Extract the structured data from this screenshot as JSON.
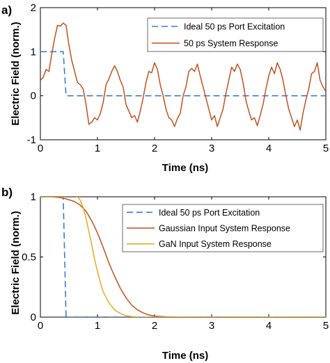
{
  "colors": {
    "ideal": "#3a7ad6",
    "system": "#c1521f",
    "gaussian": "#c1521f",
    "gan": "#e6ac1e"
  },
  "chart_data": [
    {
      "type": "line",
      "panel_label": "a)",
      "xlabel": "Time (ns)",
      "ylabel": "Electric Field (norm.)",
      "xlim": [
        0,
        5
      ],
      "ylim": [
        -1,
        2
      ],
      "xticks": [
        "0",
        "1",
        "2",
        "3",
        "4",
        "5"
      ],
      "yticks": [
        "-1",
        "0",
        "1",
        "2"
      ],
      "legend_position": "top-right",
      "series": [
        {
          "name": "Ideal 50 ps Port Excitation",
          "style": "dashed",
          "color_key": "ideal",
          "x": [
            0,
            0.4,
            0.45,
            5
          ],
          "y": [
            1,
            1,
            0,
            0
          ]
        },
        {
          "name": "50 ps System Response",
          "style": "solid",
          "color_key": "system",
          "x": [
            0,
            0.05,
            0.1,
            0.15,
            0.2,
            0.25,
            0.3,
            0.35,
            0.4,
            0.45,
            0.5,
            0.55,
            0.6,
            0.65,
            0.7,
            0.75,
            0.8,
            0.85,
            0.9,
            0.95,
            1.0,
            1.05,
            1.1,
            1.15,
            1.2,
            1.25,
            1.3,
            1.35,
            1.4,
            1.45,
            1.5,
            1.55,
            1.6,
            1.65,
            1.7,
            1.75,
            1.8,
            1.85,
            1.9,
            1.95,
            2.0,
            2.05,
            2.1,
            2.15,
            2.2,
            2.25,
            2.3,
            2.35,
            2.4,
            2.45,
            2.5,
            2.55,
            2.6,
            2.65,
            2.7,
            2.75,
            2.8,
            2.85,
            2.9,
            2.95,
            3.0,
            3.05,
            3.1,
            3.15,
            3.2,
            3.25,
            3.3,
            3.35,
            3.4,
            3.45,
            3.5,
            3.55,
            3.6,
            3.65,
            3.7,
            3.75,
            3.8,
            3.85,
            3.9,
            3.95,
            4.0,
            4.05,
            4.1,
            4.15,
            4.2,
            4.25,
            4.3,
            4.35,
            4.4,
            4.45,
            4.5,
            4.55,
            4.6,
            4.65,
            4.7,
            4.75,
            4.8,
            4.85,
            4.9,
            4.95,
            5.0
          ],
          "y": [
            0.35,
            0.42,
            0.6,
            0.55,
            0.95,
            1.3,
            1.6,
            1.58,
            1.65,
            1.6,
            1.15,
            0.8,
            0.55,
            0.3,
            0.25,
            0.15,
            -0.2,
            -0.65,
            -0.6,
            -0.5,
            -0.55,
            -0.4,
            -0.15,
            0.25,
            0.38,
            0.55,
            0.68,
            0.55,
            0.35,
            0.2,
            -0.2,
            -0.35,
            -0.5,
            -0.45,
            -0.6,
            -0.35,
            -0.05,
            0.3,
            0.55,
            0.52,
            0.75,
            0.6,
            0.25,
            0.0,
            -0.3,
            -0.5,
            -0.55,
            -0.7,
            -0.52,
            -0.4,
            0.0,
            0.2,
            0.55,
            0.62,
            0.55,
            0.72,
            0.45,
            0.2,
            -0.05,
            -0.3,
            -0.55,
            -0.45,
            -0.7,
            -0.5,
            -0.3,
            0.05,
            0.35,
            0.65,
            0.55,
            0.72,
            0.6,
            0.3,
            -0.1,
            -0.35,
            -0.55,
            -0.5,
            -0.68,
            -0.45,
            -0.2,
            0.15,
            0.45,
            0.65,
            0.5,
            0.75,
            0.6,
            0.35,
            0.0,
            -0.3,
            -0.5,
            -0.7,
            -0.55,
            -0.78,
            -0.4,
            -0.1,
            0.15,
            0.5,
            0.55,
            0.75,
            0.35,
            0.2,
            0.1
          ]
        }
      ]
    },
    {
      "type": "line",
      "panel_label": "b)",
      "xlabel": "Time (ns)",
      "ylabel": "Electric Field (norm.)",
      "xlim": [
        0,
        5
      ],
      "ylim": [
        0,
        1
      ],
      "xticks": [
        "0",
        "1",
        "2",
        "3",
        "4",
        "5"
      ],
      "yticks": [
        "0",
        "0.5",
        "1"
      ],
      "legend_position": "top-right",
      "series": [
        {
          "name": "Ideal 50 ps Port Excitation",
          "style": "dashed",
          "color_key": "ideal",
          "x": [
            0,
            0.4,
            0.45,
            5
          ],
          "y": [
            1,
            1,
            0,
            0
          ]
        },
        {
          "name": "Gaussian Input System Response",
          "style": "solid",
          "color_key": "gaussian",
          "x": [
            0,
            0.2,
            0.4,
            0.6,
            0.7,
            0.8,
            0.9,
            1.0,
            1.1,
            1.2,
            1.3,
            1.4,
            1.5,
            1.6,
            1.7,
            1.8,
            1.9,
            2.0,
            2.2,
            2.5,
            3.0,
            3.5,
            4.0,
            4.5,
            5.0
          ],
          "y": [
            1.0,
            1.0,
            0.99,
            0.96,
            0.93,
            0.88,
            0.8,
            0.7,
            0.58,
            0.45,
            0.34,
            0.24,
            0.16,
            0.1,
            0.06,
            0.035,
            0.018,
            0.008,
            0.003,
            0.001,
            0.0,
            0.002,
            -0.002,
            0.001,
            0.0
          ]
        },
        {
          "name": "GaN Input System Response",
          "style": "solid",
          "color_key": "gan",
          "x": [
            0,
            0.2,
            0.4,
            0.5,
            0.55,
            0.6,
            0.65,
            0.7,
            0.75,
            0.8,
            0.85,
            0.9,
            0.95,
            1.0,
            1.05,
            1.1,
            1.2,
            1.3,
            1.4,
            1.5,
            1.6,
            1.7,
            1.8,
            2.0,
            2.5,
            3.0,
            3.5,
            4.0,
            4.5,
            5.0
          ],
          "y": [
            1.0,
            1.0,
            1.0,
            1.01,
            1.02,
            1.02,
            1.0,
            0.97,
            0.91,
            0.82,
            0.71,
            0.6,
            0.48,
            0.38,
            0.29,
            0.21,
            0.12,
            0.06,
            0.03,
            0.012,
            0.004,
            0.0,
            -0.003,
            0.0,
            0.002,
            -0.002,
            0.001,
            0.0,
            0.001,
            0.0
          ]
        }
      ]
    }
  ]
}
